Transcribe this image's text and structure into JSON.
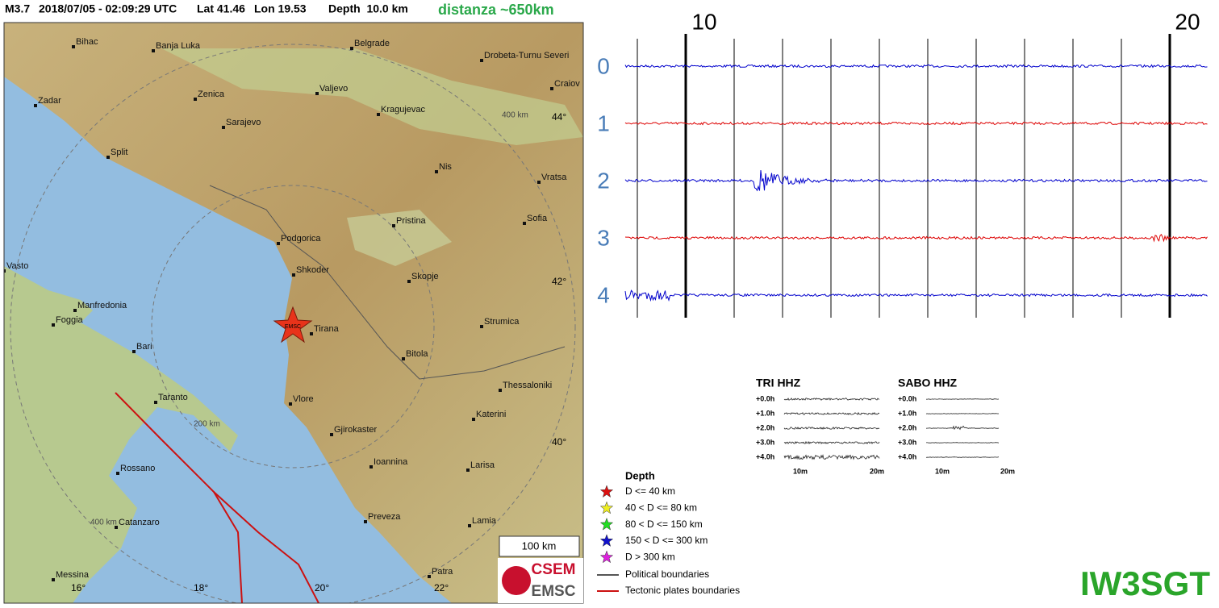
{
  "header": {
    "magnitude": "M3.7",
    "datetime": "2018/07/05 - 02:09:29 UTC",
    "lat": "Lat 41.46",
    "lon": "Lon 19.53",
    "depth": "Depth  10.0 km",
    "distance": "distanza ~650km"
  },
  "map": {
    "cities": [
      "Bihac",
      "Banja Luka",
      "Belgrade",
      "Drobeta-Turnu Severi",
      "Craiov",
      "Zadar",
      "Zenica",
      "Valjevo",
      "Kragujevac",
      "Sarajevo",
      "Split",
      "Nis",
      "Vratsa",
      "Sofia",
      "Pristina",
      "Podgorica",
      "Vasto",
      "Shkoder",
      "Skopje",
      "Manfredonia",
      "Foggia",
      "Strumica",
      "Tirana",
      "Bari",
      "Bitola",
      "Thessaloniki",
      "Taranto",
      "Vlore",
      "Katerini",
      "Gjirokaster",
      "Ioannina",
      "Larisa",
      "Rossano",
      "Preveza",
      "Lamia",
      "Catanzaro",
      "Patra",
      "Messina"
    ],
    "ring_labels": [
      "400 km",
      "200 km",
      "400 km"
    ],
    "latitudes": [
      "44°",
      "42°",
      "40°"
    ],
    "longitudes": [
      "16°",
      "18°",
      "20°",
      "22°"
    ],
    "scale": "100 km",
    "epicenter": "EMSC",
    "logo": [
      "CSEM",
      "EMSC"
    ]
  },
  "seismogram": {
    "hour_markers": [
      "10",
      "20"
    ],
    "traces": [
      "0",
      "1",
      "2",
      "3",
      "4"
    ]
  },
  "station_plots": [
    {
      "title": "TRI HHZ",
      "rows": [
        "+0.0h",
        "+1.0h",
        "+2.0h",
        "+3.0h",
        "+4.0h"
      ],
      "x_labels": [
        "10m",
        "20m"
      ]
    },
    {
      "title": "SABO HHZ",
      "rows": [
        "+0.0h",
        "+1.0h",
        "+2.0h",
        "+3.0h",
        "+4.0h"
      ],
      "x_labels": [
        "10m",
        "20m"
      ]
    }
  ],
  "legend": {
    "title": "Depth",
    "items": [
      "D <= 40 km",
      "40 < D <= 80 km",
      "80 < D <= 150 km",
      "150 < D <= 300 km",
      "D > 300 km"
    ],
    "lines": [
      "Political boundaries",
      "Tectonic plates boundaries"
    ]
  },
  "callsign": "IW3SGT"
}
